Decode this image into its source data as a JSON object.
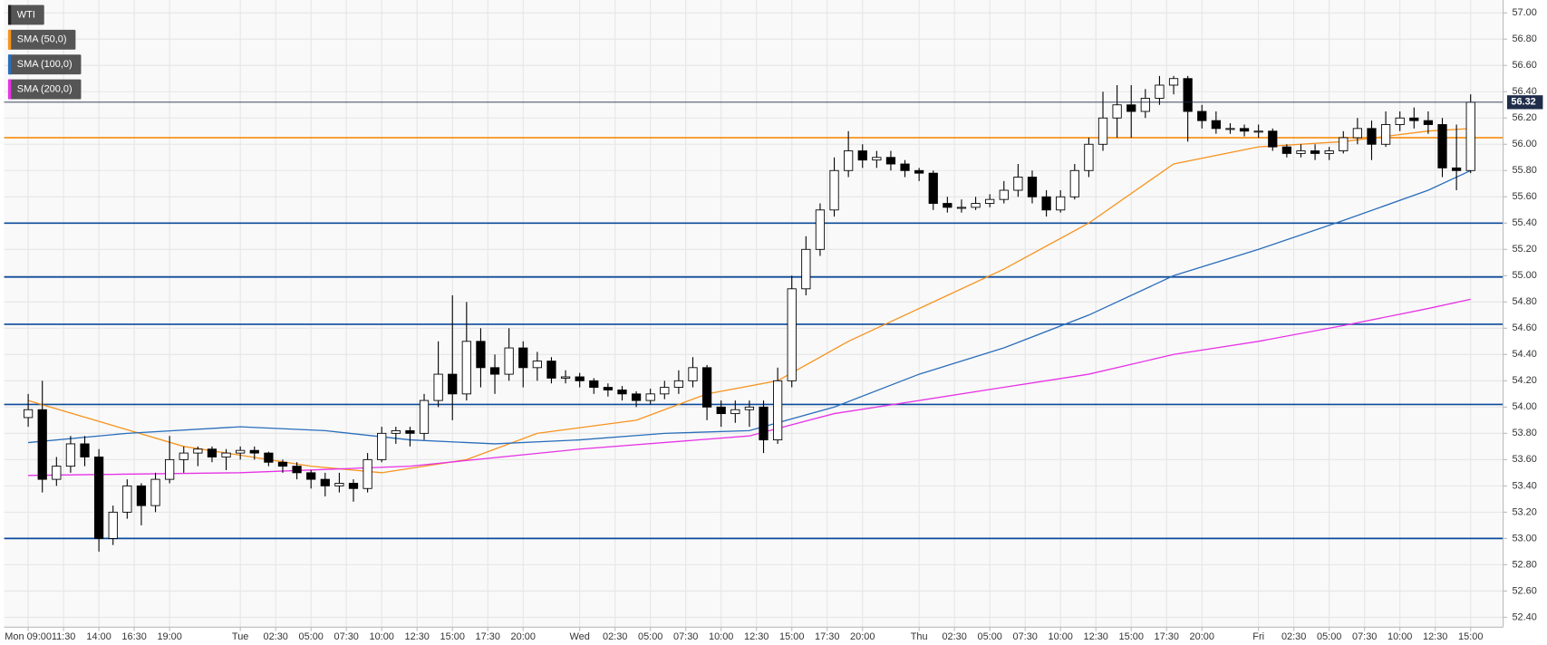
{
  "chart_data": {
    "type": "candlestick",
    "name": "WTI",
    "candle_colors": {
      "up": "#ffffff",
      "down": "#000000",
      "outline": "#000000"
    },
    "candles": [
      [
        9,
        53.92,
        54.1,
        53.85,
        53.98
      ],
      [
        10,
        53.98,
        54.2,
        53.35,
        53.45
      ],
      [
        11,
        53.45,
        53.62,
        53.4,
        53.55
      ],
      [
        12,
        53.55,
        53.78,
        53.5,
        53.72
      ],
      [
        13,
        53.72,
        53.78,
        53.55,
        53.62
      ],
      [
        14,
        53.62,
        53.68,
        52.9,
        53.0
      ],
      [
        15,
        53.0,
        53.25,
        52.95,
        53.2
      ],
      [
        16,
        53.2,
        53.45,
        53.15,
        53.4
      ],
      [
        17,
        53.4,
        53.42,
        53.1,
        53.25
      ],
      [
        18,
        53.25,
        53.5,
        53.2,
        53.45
      ],
      [
        19,
        53.45,
        53.78,
        53.42,
        53.6
      ],
      [
        20,
        53.6,
        53.7,
        53.5,
        53.65
      ],
      [
        21,
        53.65,
        53.7,
        53.55,
        53.68
      ],
      [
        22,
        53.68,
        53.7,
        53.58,
        53.62
      ],
      [
        23,
        53.62,
        53.68,
        53.52,
        53.65
      ],
      [
        24,
        53.65,
        53.7,
        53.6,
        53.67
      ],
      [
        25,
        53.67,
        53.7,
        53.6,
        53.65
      ],
      [
        26,
        53.65,
        53.66,
        53.55,
        53.58
      ],
      [
        27,
        53.58,
        53.6,
        53.5,
        53.55
      ],
      [
        28,
        53.55,
        53.58,
        53.45,
        53.5
      ],
      [
        29,
        53.5,
        53.52,
        53.38,
        53.45
      ],
      [
        30,
        53.45,
        53.5,
        53.32,
        53.4
      ],
      [
        31,
        53.4,
        53.5,
        53.35,
        53.42
      ],
      [
        32,
        53.42,
        53.45,
        53.28,
        53.38
      ],
      [
        33,
        53.38,
        53.65,
        53.35,
        53.6
      ],
      [
        34,
        53.6,
        53.85,
        53.58,
        53.8
      ],
      [
        35,
        53.8,
        53.85,
        53.72,
        53.82
      ],
      [
        36,
        53.82,
        53.85,
        53.7,
        53.8
      ],
      [
        37,
        53.8,
        54.1,
        53.75,
        54.05
      ],
      [
        38,
        54.05,
        54.5,
        54.0,
        54.25
      ],
      [
        39,
        54.25,
        54.85,
        53.9,
        54.1
      ],
      [
        40,
        54.1,
        54.8,
        54.05,
        54.5
      ],
      [
        41,
        54.5,
        54.6,
        54.15,
        54.3
      ],
      [
        42,
        54.3,
        54.4,
        54.1,
        54.25
      ],
      [
        43,
        54.25,
        54.6,
        54.2,
        54.45
      ],
      [
        44,
        54.45,
        54.5,
        54.15,
        54.3
      ],
      [
        45,
        54.3,
        54.42,
        54.2,
        54.35
      ],
      [
        46,
        54.35,
        54.38,
        54.18,
        54.22
      ],
      [
        47,
        54.22,
        54.28,
        54.18,
        54.23
      ],
      [
        48,
        54.23,
        54.26,
        54.15,
        54.2
      ],
      [
        49,
        54.2,
        54.22,
        54.1,
        54.15
      ],
      [
        50,
        54.15,
        54.18,
        54.08,
        54.13
      ],
      [
        51,
        54.13,
        54.16,
        54.05,
        54.1
      ],
      [
        52,
        54.1,
        54.12,
        54.0,
        54.05
      ],
      [
        53,
        54.05,
        54.14,
        54.02,
        54.1
      ],
      [
        54,
        54.1,
        54.2,
        54.06,
        54.15
      ],
      [
        55,
        54.15,
        54.28,
        54.1,
        54.2
      ],
      [
        56,
        54.2,
        54.38,
        54.15,
        54.3
      ],
      [
        57,
        54.3,
        54.32,
        53.9,
        54.0
      ],
      [
        58,
        54.0,
        54.05,
        53.85,
        53.95
      ],
      [
        59,
        53.95,
        54.05,
        53.88,
        53.98
      ],
      [
        60,
        53.98,
        54.05,
        53.85,
        54.0
      ],
      [
        61,
        54.0,
        54.05,
        53.65,
        53.75
      ],
      [
        62,
        53.75,
        54.3,
        53.72,
        54.2
      ],
      [
        63,
        54.2,
        55.0,
        54.15,
        54.9
      ],
      [
        64,
        54.9,
        55.3,
        54.85,
        55.2
      ],
      [
        65,
        55.2,
        55.55,
        55.15,
        55.5
      ],
      [
        66,
        55.5,
        55.9,
        55.45,
        55.8
      ],
      [
        67,
        55.8,
        56.1,
        55.75,
        55.95
      ],
      [
        68,
        55.95,
        56.0,
        55.82,
        55.88
      ],
      [
        69,
        55.88,
        55.95,
        55.82,
        55.9
      ],
      [
        70,
        55.9,
        55.95,
        55.8,
        55.85
      ],
      [
        71,
        55.85,
        55.88,
        55.75,
        55.8
      ],
      [
        72,
        55.8,
        55.82,
        55.72,
        55.78
      ],
      [
        73,
        55.78,
        55.8,
        55.5,
        55.55
      ],
      [
        74,
        55.55,
        55.6,
        55.48,
        55.52
      ],
      [
        75,
        55.52,
        55.58,
        55.48,
        55.52
      ],
      [
        76,
        55.52,
        55.6,
        55.5,
        55.55
      ],
      [
        77,
        55.55,
        55.62,
        55.52,
        55.58
      ],
      [
        78,
        55.58,
        55.72,
        55.55,
        55.65
      ],
      [
        79,
        55.65,
        55.85,
        55.6,
        55.75
      ],
      [
        80,
        55.75,
        55.8,
        55.55,
        55.6
      ],
      [
        81,
        55.6,
        55.65,
        55.45,
        55.5
      ],
      [
        82,
        55.5,
        55.65,
        55.48,
        55.6
      ],
      [
        83,
        55.6,
        55.85,
        55.58,
        55.8
      ],
      [
        84,
        55.8,
        56.05,
        55.75,
        56.0
      ],
      [
        85,
        56.0,
        56.4,
        55.95,
        56.2
      ],
      [
        86,
        56.2,
        56.45,
        56.05,
        56.3
      ],
      [
        87,
        56.3,
        56.45,
        56.05,
        56.25
      ],
      [
        88,
        56.25,
        56.42,
        56.2,
        56.35
      ],
      [
        89,
        56.35,
        56.52,
        56.3,
        56.45
      ],
      [
        90,
        56.45,
        56.52,
        56.38,
        56.5
      ],
      [
        91,
        56.5,
        56.52,
        56.02,
        56.25
      ],
      [
        92,
        56.25,
        56.3,
        56.12,
        56.18
      ],
      [
        93,
        56.18,
        56.25,
        56.08,
        56.12
      ],
      [
        94,
        56.12,
        56.16,
        56.08,
        56.12
      ],
      [
        95,
        56.12,
        56.15,
        56.06,
        56.1
      ],
      [
        96,
        56.1,
        56.15,
        56.05,
        56.1
      ],
      [
        97,
        56.1,
        56.12,
        55.95,
        55.98
      ],
      [
        98,
        55.98,
        56.0,
        55.9,
        55.93
      ],
      [
        99,
        55.93,
        56.0,
        55.9,
        55.95
      ],
      [
        100,
        55.95,
        56.0,
        55.88,
        55.93
      ],
      [
        101,
        55.93,
        55.98,
        55.88,
        55.95
      ],
      [
        102,
        55.95,
        56.1,
        55.93,
        56.05
      ],
      [
        103,
        56.05,
        56.2,
        56.0,
        56.12
      ],
      [
        104,
        56.12,
        56.18,
        55.88,
        56.0
      ],
      [
        105,
        56.0,
        56.25,
        55.98,
        56.15
      ],
      [
        106,
        56.15,
        56.25,
        56.1,
        56.2
      ],
      [
        107,
        56.2,
        56.28,
        56.12,
        56.18
      ],
      [
        108,
        56.18,
        56.25,
        56.08,
        56.15
      ],
      [
        109,
        56.15,
        56.2,
        55.75,
        55.82
      ],
      [
        110,
        55.82,
        56.15,
        55.65,
        55.8
      ],
      [
        111,
        55.8,
        56.38,
        55.78,
        56.32
      ]
    ],
    "series": [
      {
        "name": "SMA (50,0)",
        "color": "#f7931e",
        "x": [
          9,
          20,
          29,
          34,
          37,
          40,
          45,
          52,
          57,
          62,
          67,
          72,
          78,
          84,
          90,
          96,
          102,
          108,
          111
        ],
        "values": [
          54.05,
          53.7,
          53.55,
          53.5,
          53.55,
          53.6,
          53.8,
          53.9,
          54.1,
          54.2,
          54.5,
          54.75,
          55.05,
          55.4,
          55.85,
          55.98,
          56.02,
          56.1,
          56.12
        ]
      },
      {
        "name": "SMA (100,0)",
        "color": "#2a6ebb",
        "x": [
          9,
          16,
          24,
          30,
          36,
          42,
          48,
          54,
          60,
          66,
          72,
          78,
          84,
          90,
          96,
          102,
          108,
          111
        ],
        "values": [
          53.73,
          53.8,
          53.85,
          53.82,
          53.75,
          53.72,
          53.75,
          53.8,
          53.82,
          54.0,
          54.25,
          54.45,
          54.7,
          55.0,
          55.2,
          55.42,
          55.65,
          55.8
        ]
      },
      {
        "name": "SMA (200,0)",
        "color": "#e633e6",
        "x": [
          9,
          24,
          36,
          48,
          60,
          66,
          72,
          78,
          84,
          90,
          96,
          102,
          108,
          111
        ],
        "values": [
          53.48,
          53.5,
          53.55,
          53.68,
          53.78,
          53.95,
          54.05,
          54.15,
          54.25,
          54.4,
          54.5,
          54.62,
          54.75,
          54.82
        ]
      }
    ],
    "levels": [
      {
        "value": 56.05,
        "color": "#f7931e"
      },
      {
        "value": 55.4,
        "color": "#0b4a9a"
      },
      {
        "value": 54.99,
        "color": "#0b4a9a"
      },
      {
        "value": 54.63,
        "color": "#0b4a9a"
      },
      {
        "value": 54.02,
        "color": "#0b4a9a"
      },
      {
        "value": 53.0,
        "color": "#0b4a9a"
      }
    ],
    "last_price": 56.32,
    "grid": true,
    "xlim": [
      7.3,
      113.3
    ],
    "xticks": [
      {
        "value": 9,
        "label": "Mon 09:00"
      },
      {
        "value": 11.5,
        "label": "11:30"
      },
      {
        "value": 14,
        "label": "14:00"
      },
      {
        "value": 16.5,
        "label": "16:30"
      },
      {
        "value": 19,
        "label": "19:00"
      },
      {
        "value": 24,
        "label": "Tue"
      },
      {
        "value": 26.5,
        "label": "02:30"
      },
      {
        "value": 29,
        "label": "05:00"
      },
      {
        "value": 31.5,
        "label": "07:30"
      },
      {
        "value": 34,
        "label": "10:00"
      },
      {
        "value": 36.5,
        "label": "12:30"
      },
      {
        "value": 39,
        "label": "15:00"
      },
      {
        "value": 41.5,
        "label": "17:30"
      },
      {
        "value": 44,
        "label": "20:00"
      },
      {
        "value": 48,
        "label": "Wed"
      },
      {
        "value": 50.5,
        "label": "02:30"
      },
      {
        "value": 53,
        "label": "05:00"
      },
      {
        "value": 55.5,
        "label": "07:30"
      },
      {
        "value": 58,
        "label": "10:00"
      },
      {
        "value": 60.5,
        "label": "12:30"
      },
      {
        "value": 63,
        "label": "15:00"
      },
      {
        "value": 65.5,
        "label": "17:30"
      },
      {
        "value": 68,
        "label": "20:00"
      },
      {
        "value": 72,
        "label": "Thu"
      },
      {
        "value": 74.5,
        "label": "02:30"
      },
      {
        "value": 77,
        "label": "05:00"
      },
      {
        "value": 79.5,
        "label": "07:30"
      },
      {
        "value": 82,
        "label": "10:00"
      },
      {
        "value": 84.5,
        "label": "12:30"
      },
      {
        "value": 87,
        "label": "15:00"
      },
      {
        "value": 89.5,
        "label": "17:30"
      },
      {
        "value": 92,
        "label": "20:00"
      },
      {
        "value": 96,
        "label": "Fri"
      },
      {
        "value": 98.5,
        "label": "02:30"
      },
      {
        "value": 101,
        "label": "05:00"
      },
      {
        "value": 103.5,
        "label": "07:30"
      },
      {
        "value": 106,
        "label": "10:00"
      },
      {
        "value": 108.5,
        "label": "12:30"
      },
      {
        "value": 111,
        "label": "15:00"
      }
    ],
    "ylim": [
      52.325,
      57.098
    ],
    "yticks": [
      {
        "value": 52.4,
        "label": "52.40"
      },
      {
        "value": 52.6,
        "label": "52.60"
      },
      {
        "value": 52.8,
        "label": "52.80"
      },
      {
        "value": 53.0,
        "label": "53.00"
      },
      {
        "value": 53.2,
        "label": "53.20"
      },
      {
        "value": 53.4,
        "label": "53.40"
      },
      {
        "value": 53.6,
        "label": "53.60"
      },
      {
        "value": 53.8,
        "label": "53.80"
      },
      {
        "value": 54.0,
        "label": "54.00"
      },
      {
        "value": 54.2,
        "label": "54.20"
      },
      {
        "value": 54.4,
        "label": "54.40"
      },
      {
        "value": 54.6,
        "label": "54.60"
      },
      {
        "value": 54.8,
        "label": "54.80"
      },
      {
        "value": 55.0,
        "label": "55.00"
      },
      {
        "value": 55.2,
        "label": "55.20"
      },
      {
        "value": 55.4,
        "label": "55.40"
      },
      {
        "value": 55.6,
        "label": "55.60"
      },
      {
        "value": 55.8,
        "label": "55.80"
      },
      {
        "value": 56.0,
        "label": "56.00"
      },
      {
        "value": 56.2,
        "label": "56.20"
      },
      {
        "value": 56.4,
        "label": "56.40"
      },
      {
        "value": 56.6,
        "label": "56.60"
      },
      {
        "value": 56.8,
        "label": "56.80"
      },
      {
        "value": 57.0,
        "label": "57.00"
      }
    ]
  }
}
